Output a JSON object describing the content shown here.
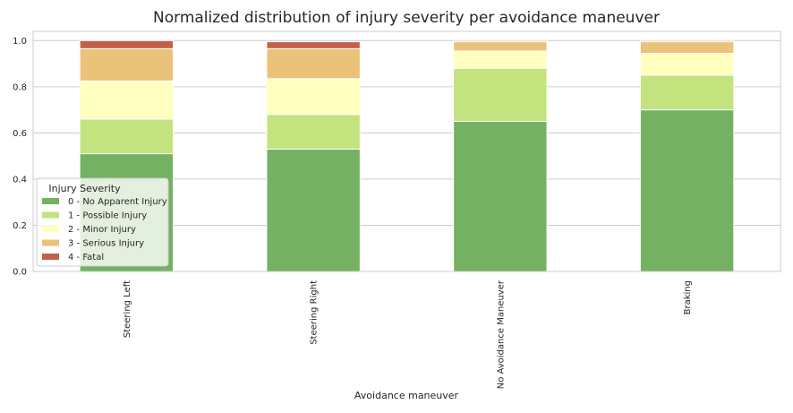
{
  "chart_data": {
    "type": "bar",
    "stacked": true,
    "orientation": "vertical",
    "title": "Normalized distribution of injury severity per avoidance maneuver",
    "xlabel": "Avoidance maneuver",
    "ylabel": "",
    "ylim": [
      0,
      1.04
    ],
    "yticks": [
      "0.0",
      "0.2",
      "0.4",
      "0.6",
      "0.8",
      "1.0"
    ],
    "ytick_values": [
      0,
      0.2,
      0.4,
      0.6,
      0.8,
      1.0
    ],
    "grid": true,
    "categories": [
      "Steering Left",
      "Steering Right",
      "No Avoidance Maneuver",
      "Braking"
    ],
    "legend": {
      "title": "Injury Severity",
      "placement": "lower-left"
    },
    "series": [
      {
        "name": "0 - No Apparent Injury",
        "color": "#74b162",
        "values": [
          0.51,
          0.53,
          0.65,
          0.7
        ]
      },
      {
        "name": "1 - Possible Injury",
        "color": "#c3e37e",
        "values": [
          0.15,
          0.15,
          0.23,
          0.15
        ]
      },
      {
        "name": "2 - Minor Injury",
        "color": "#ffffbf",
        "values": [
          0.165,
          0.155,
          0.075,
          0.095
        ]
      },
      {
        "name": "3 - Serious Injury",
        "color": "#ebc279",
        "values": [
          0.14,
          0.13,
          0.04,
          0.05
        ]
      },
      {
        "name": "4 - Fatal",
        "color": "#c4604a",
        "values": [
          0.035,
          0.03,
          0.005,
          0.005
        ]
      }
    ]
  }
}
